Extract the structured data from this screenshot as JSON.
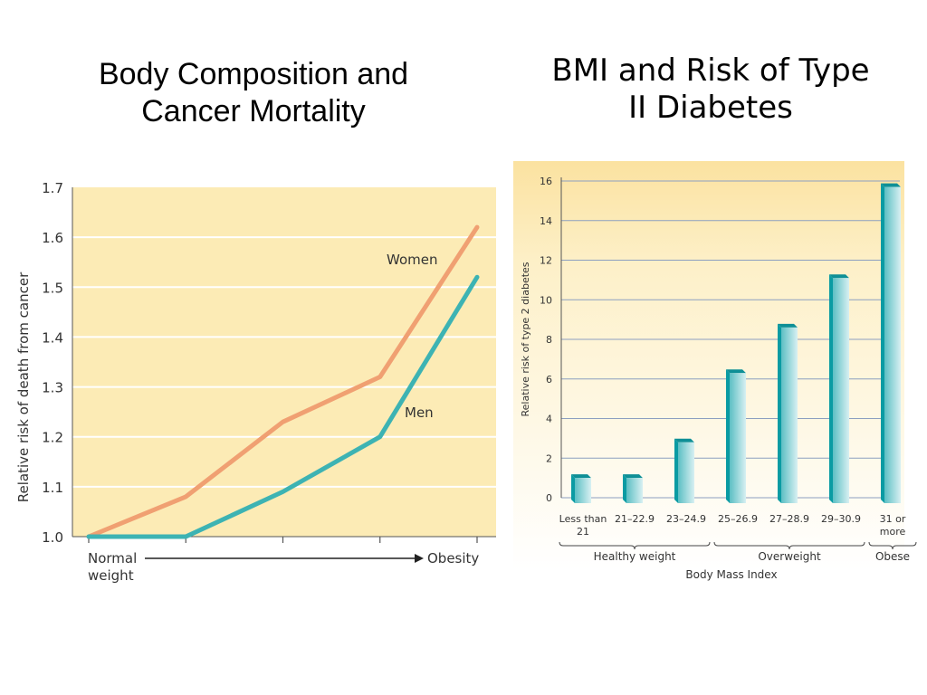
{
  "slide": {
    "title_left": "Body Composition and Cancer Mortality",
    "title_right": "BMI and Risk of Type II Diabetes"
  },
  "chart_data": [
    {
      "type": "line",
      "title": "Body Composition and Cancer Mortality",
      "ylabel": "Relative risk of death from cancer",
      "xlabel_start": "Normal weight",
      "xlabel_end": "Obesity",
      "ylim": [
        1.0,
        1.7
      ],
      "yticks": [
        "1.0",
        "1.1",
        "1.2",
        "1.3",
        "1.4",
        "1.5",
        "1.6",
        "1.7"
      ],
      "x": [
        1,
        2,
        3,
        4,
        5
      ],
      "grid": true,
      "background": "#fcebb5",
      "series": [
        {
          "name": "Women",
          "color": "#f0a072",
          "values": [
            1.0,
            1.08,
            1.23,
            1.32,
            1.62
          ]
        },
        {
          "name": "Men",
          "color": "#3db3b3",
          "values": [
            1.0,
            1.0,
            1.09,
            1.2,
            1.52
          ]
        }
      ]
    },
    {
      "type": "bar",
      "title": "BMI and Risk of Type II Diabetes",
      "ylabel": "Relative risk of type 2 diabetes",
      "xlabel": "Body Mass Index",
      "ylim": [
        0,
        16
      ],
      "yticks": [
        "0",
        "2",
        "4",
        "6",
        "8",
        "10",
        "12",
        "14",
        "16"
      ],
      "categories": [
        "Less than 21",
        "21–22.9",
        "23–24.9",
        "25–26.9",
        "27–28.9",
        "29–30.9",
        "31 or more"
      ],
      "values": [
        1.0,
        1.0,
        2.8,
        6.3,
        8.6,
        11.1,
        15.7
      ],
      "groups": [
        {
          "label": "Healthy weight",
          "from": 0,
          "to": 2
        },
        {
          "label": "Overweight",
          "from": 3,
          "to": 5
        },
        {
          "label": "Obese",
          "from": 6,
          "to": 6
        }
      ],
      "grid": true,
      "background": "#fdf0c6",
      "bar_color": "#1aa6ad"
    }
  ]
}
